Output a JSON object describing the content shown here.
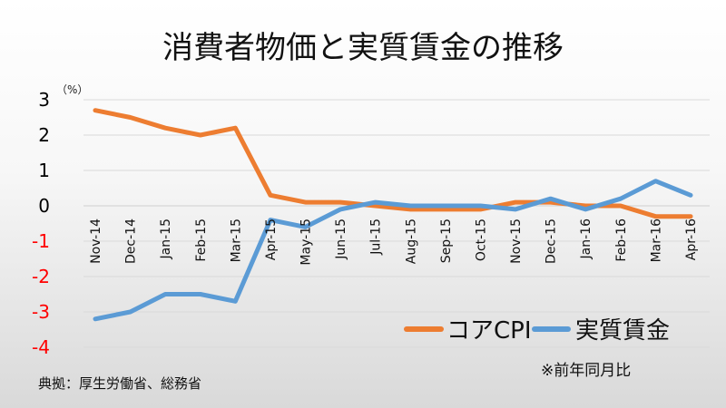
{
  "title": "消費者物価と実質賃金の推移",
  "note": "※前年同月比",
  "source": "典拠：厚生労働省、総務省",
  "chart_data": {
    "type": "line",
    "title": "消費者物価と実質賃金の推移",
    "unit": "（%）",
    "categories": [
      "Nov-14",
      "Dec-14",
      "Jan-15",
      "Feb-15",
      "Mar-15",
      "Apr-15",
      "May-15",
      "Jun-15",
      "Jul-15",
      "Aug-15",
      "Sep-15",
      "Oct-15",
      "Nov-15",
      "Dec-15",
      "Jan-16",
      "Feb-16",
      "Mar-16",
      "Apr-16"
    ],
    "series": [
      {
        "name": "コアCPI",
        "color": "#ed7d31",
        "values": [
          2.7,
          2.5,
          2.2,
          2.0,
          2.2,
          0.3,
          0.1,
          0.1,
          0.0,
          -0.1,
          -0.1,
          -0.1,
          0.1,
          0.1,
          0.0,
          0.0,
          -0.3,
          -0.3
        ]
      },
      {
        "name": "実質賃金",
        "color": "#5b9bd5",
        "values": [
          -3.2,
          -3.0,
          -2.5,
          -2.5,
          -2.7,
          -0.4,
          -0.6,
          -0.1,
          0.1,
          0.0,
          0.0,
          0.0,
          -0.1,
          0.2,
          -0.1,
          0.2,
          0.7,
          0.3
        ]
      }
    ],
    "yticks": [
      3,
      2,
      1,
      0,
      -1,
      -2,
      -3,
      -4
    ],
    "ylim": [
      -4,
      3
    ],
    "grid": true,
    "legend_position": "bottom-right",
    "negative_tick_color": "#ff0000",
    "positive_tick_color": "#000000"
  }
}
